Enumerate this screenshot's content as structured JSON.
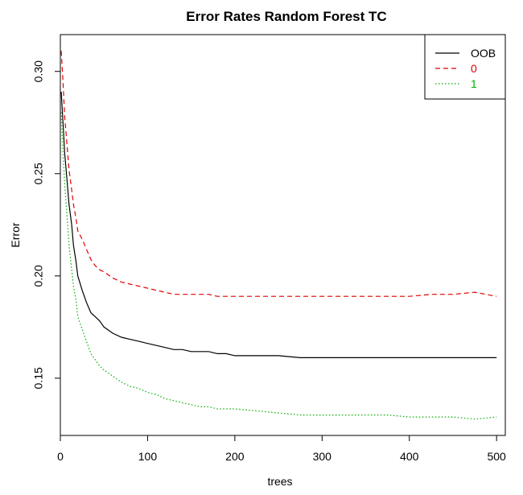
{
  "chart_data": {
    "type": "line",
    "title": "Error Rates Random Forest TC",
    "xlabel": "trees",
    "ylabel": "Error",
    "xlim": [
      0,
      510
    ],
    "ylim": [
      0.122,
      0.318
    ],
    "x_ticks": [
      0,
      100,
      200,
      300,
      400,
      500
    ],
    "y_ticks": [
      0.15,
      0.2,
      0.25,
      0.3
    ],
    "grid": false,
    "legend": {
      "position": "top-right",
      "entries": [
        {
          "label": "OOB",
          "color": "#000000",
          "dash": "solid"
        },
        {
          "label": "0",
          "color": "#e00000",
          "dash": "dashed"
        },
        {
          "label": "1",
          "color": "#00b000",
          "dash": "dotted"
        }
      ]
    },
    "series": [
      {
        "name": "OOB",
        "color": "#000000",
        "dash": "solid",
        "x": [
          1,
          3,
          5,
          8,
          10,
          13,
          15,
          18,
          20,
          25,
          30,
          35,
          40,
          45,
          50,
          60,
          70,
          80,
          90,
          100,
          110,
          120,
          130,
          140,
          150,
          160,
          170,
          180,
          190,
          200,
          225,
          250,
          275,
          300,
          325,
          350,
          375,
          400,
          425,
          450,
          475,
          500
        ],
        "values": [
          0.29,
          0.275,
          0.26,
          0.245,
          0.235,
          0.225,
          0.215,
          0.207,
          0.2,
          0.193,
          0.187,
          0.182,
          0.18,
          0.178,
          0.175,
          0.172,
          0.17,
          0.169,
          0.168,
          0.167,
          0.166,
          0.165,
          0.164,
          0.164,
          0.163,
          0.163,
          0.163,
          0.162,
          0.162,
          0.161,
          0.161,
          0.161,
          0.16,
          0.16,
          0.16,
          0.16,
          0.16,
          0.16,
          0.16,
          0.16,
          0.16,
          0.16
        ]
      },
      {
        "name": "0",
        "color": "#e00000",
        "dash": "dashed",
        "x": [
          1,
          3,
          5,
          8,
          10,
          13,
          15,
          18,
          20,
          25,
          30,
          35,
          40,
          45,
          50,
          60,
          70,
          80,
          90,
          100,
          110,
          120,
          130,
          140,
          150,
          160,
          170,
          180,
          190,
          200,
          225,
          250,
          275,
          300,
          325,
          350,
          375,
          400,
          425,
          450,
          475,
          500
        ],
        "values": [
          0.31,
          0.295,
          0.278,
          0.262,
          0.252,
          0.242,
          0.235,
          0.228,
          0.222,
          0.218,
          0.213,
          0.208,
          0.205,
          0.203,
          0.202,
          0.199,
          0.197,
          0.196,
          0.195,
          0.194,
          0.193,
          0.192,
          0.191,
          0.191,
          0.191,
          0.191,
          0.191,
          0.19,
          0.19,
          0.19,
          0.19,
          0.19,
          0.19,
          0.19,
          0.19,
          0.19,
          0.19,
          0.19,
          0.191,
          0.191,
          0.192,
          0.19
        ]
      },
      {
        "name": "1",
        "color": "#00b000",
        "dash": "dotted",
        "x": [
          1,
          3,
          5,
          8,
          10,
          13,
          15,
          18,
          20,
          25,
          30,
          35,
          40,
          45,
          50,
          60,
          70,
          80,
          90,
          100,
          110,
          120,
          130,
          140,
          150,
          160,
          170,
          180,
          190,
          200,
          225,
          250,
          275,
          300,
          325,
          350,
          375,
          400,
          425,
          450,
          475,
          500
        ],
        "values": [
          0.28,
          0.26,
          0.245,
          0.227,
          0.215,
          0.203,
          0.195,
          0.188,
          0.18,
          0.174,
          0.168,
          0.162,
          0.159,
          0.156,
          0.154,
          0.151,
          0.148,
          0.146,
          0.145,
          0.143,
          0.142,
          0.14,
          0.139,
          0.138,
          0.137,
          0.136,
          0.136,
          0.135,
          0.135,
          0.135,
          0.134,
          0.133,
          0.132,
          0.132,
          0.132,
          0.132,
          0.132,
          0.131,
          0.131,
          0.131,
          0.13,
          0.131
        ]
      }
    ]
  }
}
